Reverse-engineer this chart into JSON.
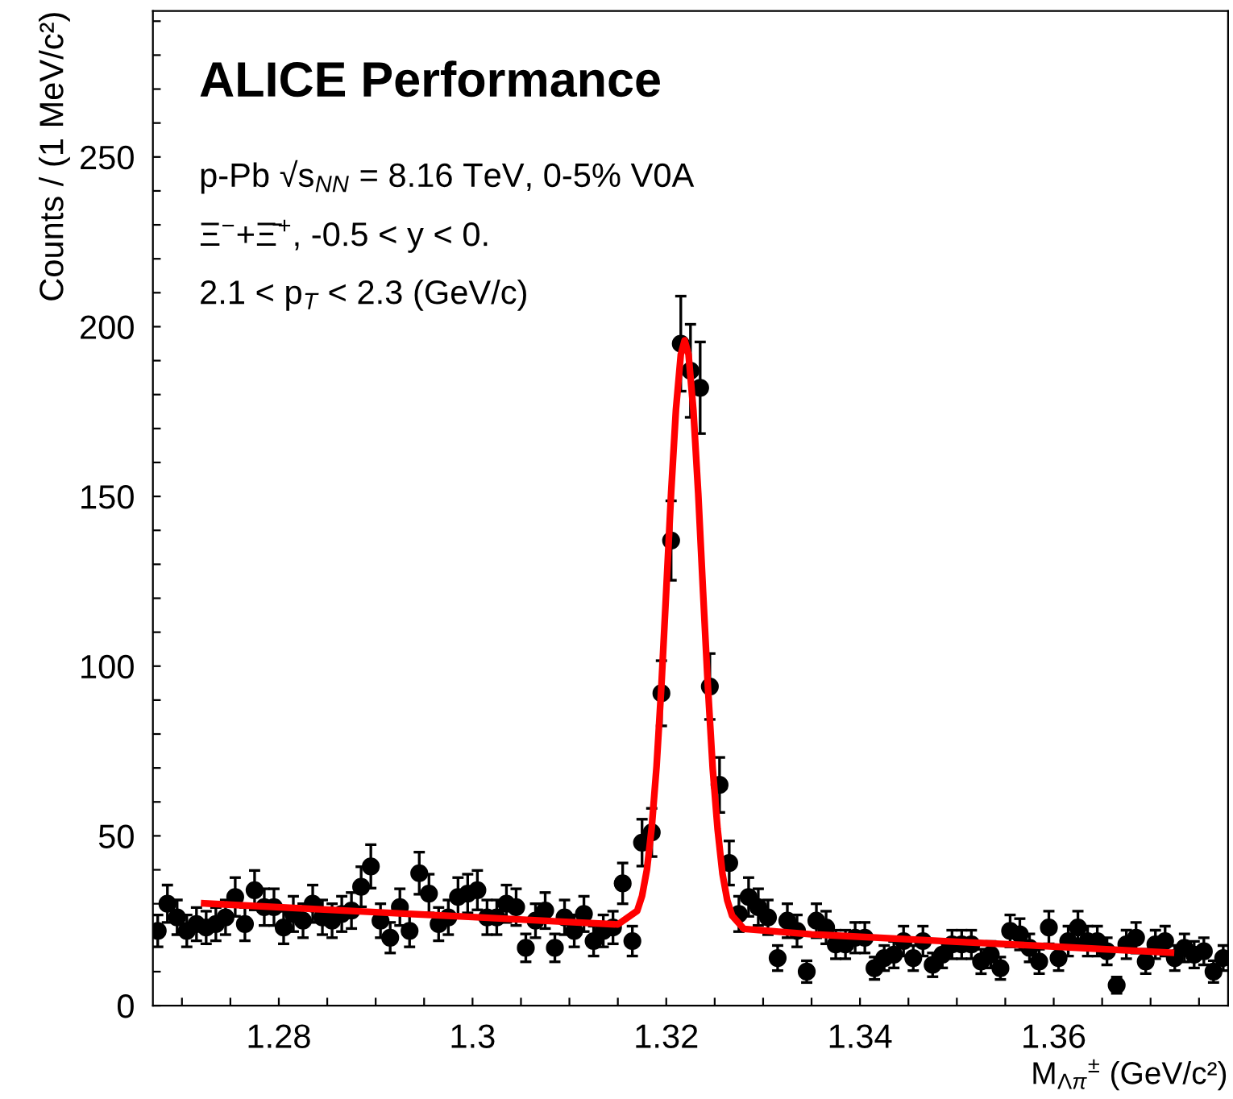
{
  "chart_data": {
    "type": "scatter",
    "xlabel": "M$_{Λπ}$$^{±}$ (GeV/c²)",
    "ylabel": "Counts / (1 MeV/c²)",
    "annotations": [
      "ALICE Performance",
      "p-Pb √s$_{NN}$ = 8.16 TeV, 0-5% V0A",
      "Ξ$^{−}$+Ξ̄$^{+}$, -0.5 < y < 0.",
      "2.1 < p$_{T}$ < 2.3 (GeV/c)"
    ],
    "xlim": [
      1.267,
      1.378
    ],
    "ylim": [
      0,
      293
    ],
    "xticks": [
      {
        "value": 1.27,
        "label": null
      },
      {
        "value": 1.275,
        "label": null
      },
      1.28,
      {
        "value": 1.285,
        "label": null
      },
      {
        "value": 1.29,
        "label": null
      },
      {
        "value": 1.295,
        "label": null
      },
      1.3,
      {
        "value": 1.305,
        "label": null
      },
      {
        "value": 1.31,
        "label": null
      },
      {
        "value": 1.315,
        "label": null
      },
      1.32,
      {
        "value": 1.325,
        "label": null
      },
      {
        "value": 1.33,
        "label": null
      },
      {
        "value": 1.335,
        "label": null
      },
      1.34,
      {
        "value": 1.345,
        "label": null
      },
      {
        "value": 1.35,
        "label": null
      },
      {
        "value": 1.355,
        "label": null
      },
      1.36,
      {
        "value": 1.365,
        "label": null
      },
      {
        "value": 1.37,
        "label": null
      },
      {
        "value": 1.375,
        "label": null
      }
    ],
    "yticks": [
      0,
      {
        "value": 10,
        "label": null
      },
      {
        "value": 20,
        "label": null
      },
      {
        "value": 30,
        "label": null
      },
      {
        "value": 40,
        "label": null
      },
      50,
      {
        "value": 60,
        "label": null
      },
      {
        "value": 70,
        "label": null
      },
      {
        "value": 80,
        "label": null
      },
      {
        "value": 90,
        "label": null
      },
      100,
      {
        "value": 110,
        "label": null
      },
      {
        "value": 120,
        "label": null
      },
      {
        "value": 130,
        "label": null
      },
      {
        "value": 140,
        "label": null
      },
      150,
      {
        "value": 160,
        "label": null
      },
      {
        "value": 170,
        "label": null
      },
      {
        "value": 180,
        "label": null
      },
      {
        "value": 190,
        "label": null
      },
      200,
      {
        "value": 210,
        "label": null
      },
      {
        "value": 220,
        "label": null
      },
      {
        "value": 230,
        "label": null
      },
      {
        "value": 240,
        "label": null
      },
      250,
      {
        "value": 260,
        "label": null
      },
      {
        "value": 270,
        "label": null
      },
      {
        "value": 280,
        "label": null
      },
      {
        "value": 290,
        "label": null
      }
    ],
    "grid": false,
    "legend": false,
    "marker": "circle",
    "series": [
      {
        "color": "#000000",
        "x": [
          1.2675,
          1.2685,
          1.2695,
          1.2705,
          1.2715,
          1.2725,
          1.2735,
          1.2745,
          1.2755,
          1.2765,
          1.2775,
          1.2785,
          1.2795,
          1.2805,
          1.2815,
          1.2825,
          1.2835,
          1.2845,
          1.2855,
          1.2865,
          1.2875,
          1.2885,
          1.2895,
          1.2905,
          1.2915,
          1.2925,
          1.2935,
          1.2945,
          1.2955,
          1.2965,
          1.2975,
          1.2985,
          1.2995,
          1.3005,
          1.3015,
          1.3025,
          1.3035,
          1.3045,
          1.3055,
          1.3065,
          1.3075,
          1.3085,
          1.3095,
          1.3105,
          1.3115,
          1.3125,
          1.3135,
          1.3145,
          1.3155,
          1.3165,
          1.3175,
          1.3185,
          1.3195,
          1.3205,
          1.3215,
          1.3225,
          1.3235,
          1.3245,
          1.3255,
          1.3265,
          1.3275,
          1.3285,
          1.3295,
          1.3305,
          1.3315,
          1.3325,
          1.3335,
          1.3345,
          1.3355,
          1.3365,
          1.3375,
          1.3385,
          1.3395,
          1.3405,
          1.3415,
          1.3425,
          1.3435,
          1.3445,
          1.3455,
          1.3465,
          1.3475,
          1.3485,
          1.3495,
          1.3505,
          1.3515,
          1.3525,
          1.3535,
          1.3545,
          1.3555,
          1.3565,
          1.3575,
          1.3585,
          1.3595,
          1.3605,
          1.3615,
          1.3625,
          1.3635,
          1.3645,
          1.3655,
          1.3665,
          1.3675,
          1.3685,
          1.3695,
          1.3705,
          1.3715,
          1.3725,
          1.3735,
          1.3745,
          1.3755,
          1.3765,
          1.3775
        ],
        "values": [
          22,
          30,
          26,
          22,
          24,
          23,
          24,
          26,
          32,
          24,
          34,
          29,
          29,
          23,
          27,
          25,
          30,
          26,
          25,
          27,
          28,
          35,
          41,
          25,
          20,
          29,
          22,
          39,
          33,
          24,
          26,
          32,
          33,
          34,
          26,
          26,
          30,
          29,
          17,
          25,
          28,
          17,
          26,
          22,
          27,
          19,
          22,
          23,
          36,
          19,
          48,
          51,
          92,
          137,
          195,
          187,
          182,
          94,
          65,
          42,
          27,
          32,
          29,
          26,
          14,
          25,
          22,
          10,
          25,
          23,
          18,
          18,
          20,
          20,
          11,
          14,
          15,
          19,
          14,
          19,
          12,
          15,
          18,
          18,
          18,
          13,
          15,
          11,
          22,
          21,
          17,
          13,
          23,
          14,
          19,
          23,
          19,
          19,
          16,
          6,
          18,
          20,
          13,
          18,
          19,
          14,
          17,
          15,
          16,
          10,
          14
        ],
        "errors": [
          4.7,
          5.5,
          5.1,
          4.7,
          4.9,
          4.8,
          4.9,
          5.1,
          5.7,
          4.9,
          5.8,
          5.4,
          5.4,
          4.8,
          5.2,
          5.0,
          5.5,
          5.1,
          5.0,
          5.2,
          5.3,
          5.9,
          6.4,
          5.0,
          4.5,
          5.4,
          4.7,
          6.2,
          5.7,
          4.9,
          5.1,
          5.7,
          5.7,
          5.8,
          5.1,
          5.1,
          5.5,
          5.4,
          4.1,
          5.0,
          5.3,
          4.1,
          5.1,
          4.7,
          5.2,
          4.4,
          4.7,
          4.8,
          6.0,
          4.4,
          6.9,
          7.1,
          9.6,
          11.7,
          14.0,
          13.7,
          13.5,
          9.7,
          8.1,
          6.5,
          5.2,
          5.7,
          5.4,
          5.1,
          3.7,
          5.0,
          4.7,
          3.2,
          5.0,
          4.8,
          4.2,
          4.2,
          4.5,
          4.5,
          3.3,
          3.7,
          3.9,
          4.4,
          3.7,
          4.4,
          3.5,
          3.9,
          4.2,
          4.2,
          4.2,
          3.6,
          3.9,
          3.3,
          4.7,
          4.6,
          4.1,
          3.6,
          4.8,
          3.7,
          4.4,
          4.8,
          4.4,
          4.4,
          4.0,
          2.4,
          4.2,
          4.5,
          3.6,
          4.2,
          4.4,
          3.7,
          4.1,
          3.9,
          4.0,
          3.2,
          3.7
        ]
      },
      {
        "type": "line",
        "color": "#ff0000",
        "marker": "none",
        "x": [
          1.2723,
          1.29,
          1.3,
          1.31,
          1.315,
          1.317,
          1.3175,
          1.318,
          1.3185,
          1.319,
          1.3195,
          1.32,
          1.3205,
          1.321,
          1.3215,
          1.3219,
          1.3223,
          1.3228,
          1.3233,
          1.3238,
          1.3243,
          1.3248,
          1.3253,
          1.3258,
          1.3263,
          1.3268,
          1.328,
          1.335,
          1.35,
          1.36,
          1.3721
        ],
        "values": [
          30.1,
          27.5,
          26.1,
          24.6,
          23.9,
          27.9,
          32.3,
          40.0,
          52.5,
          70.5,
          94.3,
          122.3,
          151.0,
          175.6,
          191.8,
          196,
          191.8,
          175.4,
          150.9,
          121.8,
          93.9,
          69.7,
          52.0,
          38.9,
          31.0,
          26.5,
          22.6,
          21.0,
          18.8,
          17.4,
          15.6
        ]
      }
    ]
  }
}
